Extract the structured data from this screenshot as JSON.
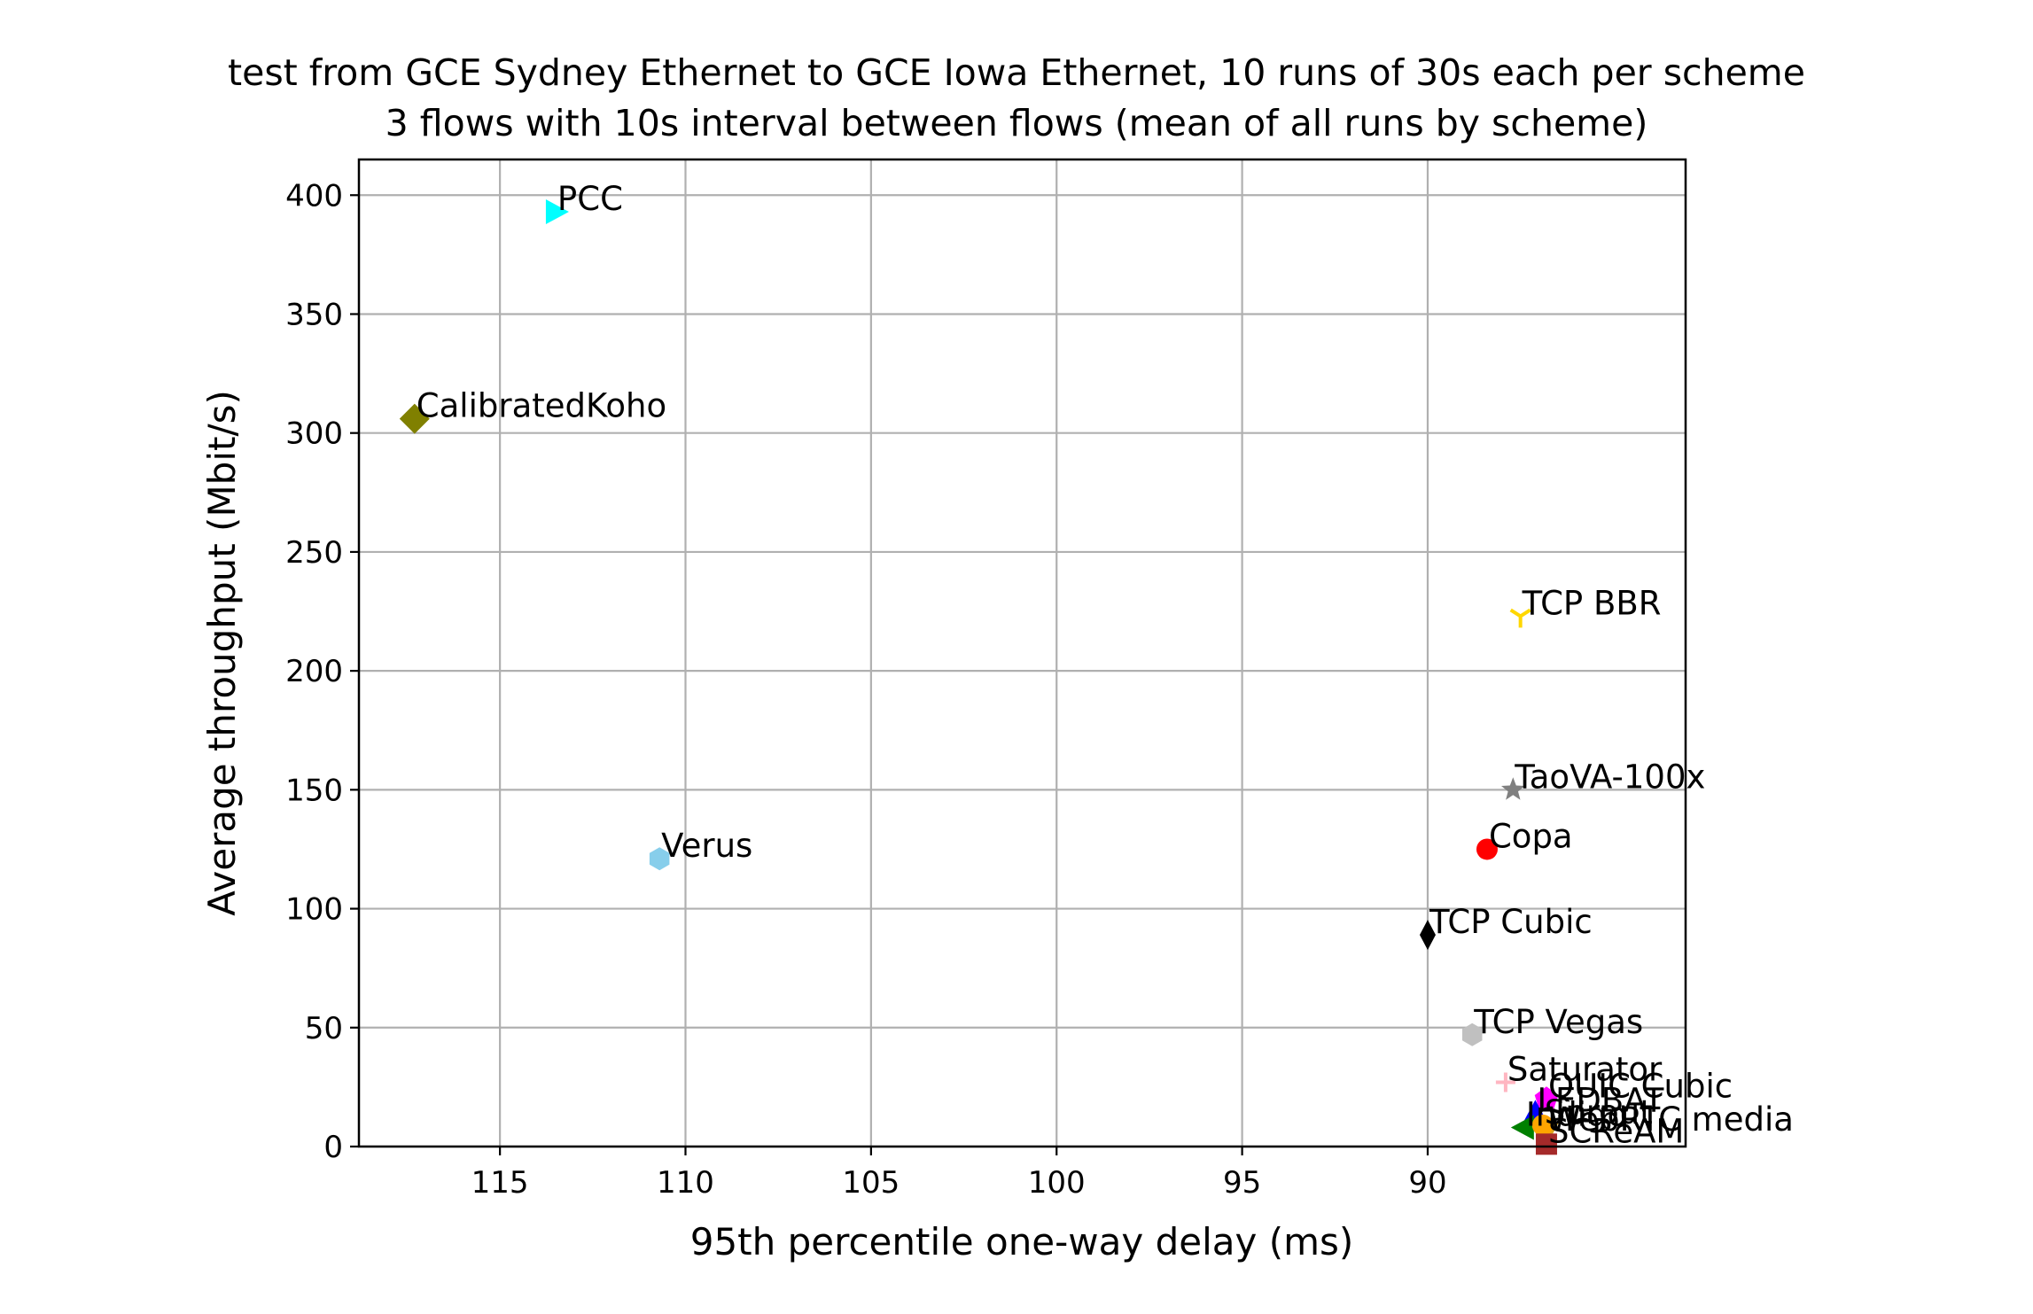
{
  "chart_data": {
    "type": "scatter",
    "title": "test from GCE Sydney Ethernet to GCE Iowa Ethernet, 10 runs of 30s each per scheme",
    "subtitle": "3 flows with 10s interval between flows (mean of all runs by scheme)",
    "xlabel": "95th percentile one-way delay (ms)",
    "ylabel": "Average throughput (Mbit/s)",
    "x_inverted": true,
    "xlim": [
      118.8,
      83.05
    ],
    "ylim": [
      0,
      415
    ],
    "xticks": [
      115,
      110,
      105,
      100,
      95,
      90
    ],
    "xtick_labels": [
      "115",
      "110",
      "105",
      "100",
      "95",
      "90"
    ],
    "yticks": [
      0,
      50,
      100,
      150,
      200,
      250,
      300,
      350,
      400
    ],
    "ytick_labels": [
      "0",
      "50",
      "100",
      "150",
      "200",
      "250",
      "300",
      "350",
      "400"
    ],
    "grid": true,
    "points": [
      {
        "name": "PCC",
        "x": 113.5,
        "y": 393,
        "marker": "triangle-right",
        "color": "#00ffff"
      },
      {
        "name": "CalibratedKoho",
        "x": 117.3,
        "y": 306,
        "marker": "diamond",
        "color": "#808000"
      },
      {
        "name": "TCP BBR",
        "x": 87.5,
        "y": 223,
        "marker": "tri-down",
        "color": "#ffd700"
      },
      {
        "name": "TaoVA-100x",
        "x": 87.7,
        "y": 150,
        "marker": "star",
        "color": "#808080"
      },
      {
        "name": "Copa",
        "x": 88.4,
        "y": 125,
        "marker": "circle",
        "color": "#ff0000"
      },
      {
        "name": "Verus",
        "x": 110.7,
        "y": 121,
        "marker": "hexagon",
        "color": "#87ceeb"
      },
      {
        "name": "TCP Cubic",
        "x": 90.0,
        "y": 89,
        "marker": "thin-diamond",
        "color": "#000000"
      },
      {
        "name": "TCP Vegas",
        "x": 88.8,
        "y": 47,
        "marker": "hexagon",
        "color": "#c0c0c0"
      },
      {
        "name": "Saturator",
        "x": 87.9,
        "y": 27,
        "marker": "plus",
        "color": "#ffb6c1"
      },
      {
        "name": "QUIC Cubic",
        "x": 86.8,
        "y": 20,
        "marker": "pentagon",
        "color": "#ff00ff"
      },
      {
        "name": "LEDBAT",
        "x": 87.1,
        "y": 14,
        "marker": "triangle-up",
        "color": "#0000ff"
      },
      {
        "name": "Indigo",
        "x": 87.4,
        "y": 8,
        "marker": "triangle-left",
        "color": "#008000"
      },
      {
        "name": "WebRTC media",
        "x": 86.8,
        "y": 6,
        "marker": "triangle-down",
        "color": "#daa520"
      },
      {
        "name": "Sprout",
        "x": 86.9,
        "y": 9,
        "marker": "circle",
        "color": "#ffa500"
      },
      {
        "name": "SCReAM",
        "x": 86.8,
        "y": 1,
        "marker": "square",
        "color": "#a52a2a"
      }
    ]
  }
}
